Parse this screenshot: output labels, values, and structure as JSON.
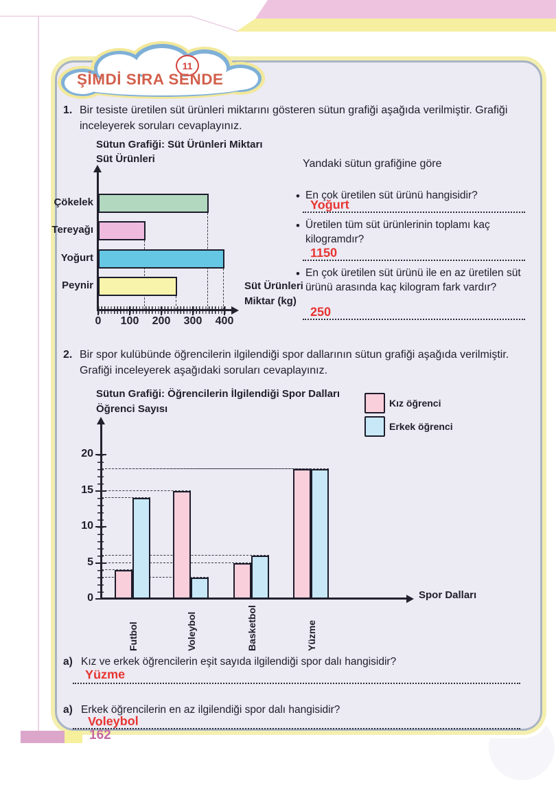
{
  "page": {
    "number": "162"
  },
  "header": {
    "badge": "11",
    "title": "ŞİMDİ SIRA SENDE"
  },
  "q1": {
    "number": "1.",
    "text": "Bir tesiste üretilen süt ürünleri miktarını gösteren sütun grafiği aşağıda verilmiştir. Grafiği inceleyerek soruları cevaplayınız.",
    "side_heading": "Yandaki sütun grafiğine göre",
    "bullets": [
      {
        "text": "En çok üretilen süt ürünü hangisidir?",
        "answer": "Yoğurt"
      },
      {
        "text": "Üretilen tüm süt ürünlerinin toplamı kaç kilogramdır?",
        "answer": "1150"
      },
      {
        "text": "En çok üretilen süt ürünü ile en az üretilen süt ürünü arasında kaç kilogram fark vardır?",
        "answer": "250"
      }
    ]
  },
  "q2": {
    "number": "2.",
    "text": "Bir spor kulübünde öğrencilerin ilgilendiği spor dallarının sütun grafiği aşağıda verilmiştir. Grafiği inceleyerek aşağıdaki soruları cevaplayınız.",
    "items": [
      {
        "label": "a)",
        "text": "Kız ve erkek öğrencilerin eşit sayıda ilgilendiği spor dalı hangisidir?",
        "answer": "Yüzme"
      },
      {
        "label": "a)",
        "text": "Erkek öğrencilerin en az ilgilendiği spor dalı hangisidir?",
        "answer": "Voleybol"
      }
    ]
  },
  "chart_data": [
    {
      "type": "bar",
      "orientation": "horizontal",
      "title": "Sütun Grafiği: Süt Ürünleri Miktarı",
      "ylabel": "Süt Ürünleri",
      "xlabel": "Süt Ürünleri Miktar (kg)",
      "categories": [
        "Çökelek",
        "Tereyağı",
        "Yoğurt",
        "Peynir"
      ],
      "values": [
        350,
        150,
        400,
        250
      ],
      "colors": [
        "#b2d9bf",
        "#eebade",
        "#66c7e5",
        "#f9f4ab"
      ],
      "xlim": [
        0,
        400
      ],
      "xticks": [
        0,
        100,
        200,
        300,
        400
      ],
      "grid": "dashed-guides"
    },
    {
      "type": "bar",
      "orientation": "vertical",
      "title": "Sütun Grafiği: Öğrencilerin İlgilendiği Spor Dalları",
      "ylabel": "Öğrenci Sayısı",
      "xlabel": "Spor Dalları",
      "categories": [
        "Futbol",
        "Voleybol",
        "Basketbol",
        "Yüzme"
      ],
      "series": [
        {
          "name": "Kız öğrenci",
          "color": "#f9cfdb",
          "values": [
            4,
            15,
            5,
            18
          ]
        },
        {
          "name": "Erkek öğrenci",
          "color": "#c8e8f8",
          "values": [
            14,
            3,
            6,
            18
          ]
        }
      ],
      "ylim": [
        0,
        21
      ],
      "yticks": [
        0,
        5,
        10,
        15,
        20
      ],
      "legend_position": "top-right",
      "grid": "dashed-guides"
    }
  ]
}
